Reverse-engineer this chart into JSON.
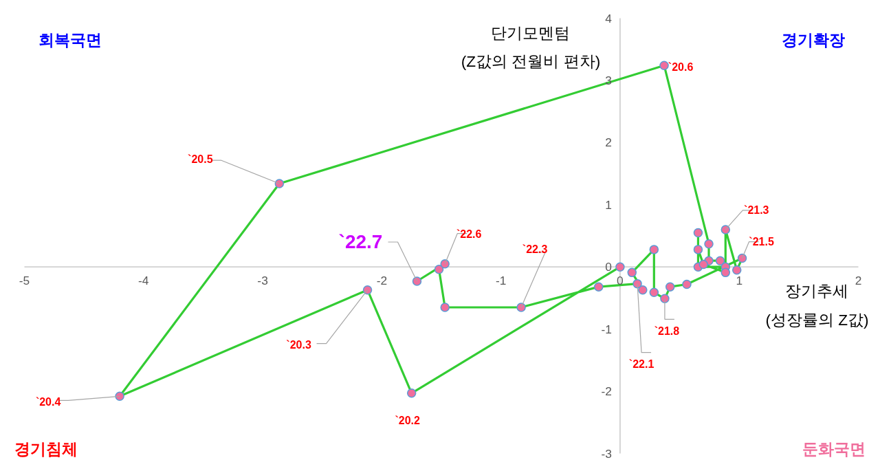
{
  "chart_data": {
    "type": "line",
    "xlabel": "장기추세\n(성장률의 Z값)",
    "ylabel": "단기모멘텀\n(Z값의 전월비 편차)",
    "xlim": [
      -5,
      2
    ],
    "ylim": [
      -3,
      4
    ],
    "xticks": [
      -5,
      -4,
      -3,
      -2,
      -1,
      0,
      1,
      2
    ],
    "yticks": [
      -3,
      -2,
      -1,
      0,
      1,
      2,
      3,
      4
    ],
    "grid": false,
    "marker": "circle",
    "line_style": "solid",
    "x": [
      0,
      -1.75,
      -2.12,
      -4.2,
      -2.86,
      0.37,
      0.745,
      0.745,
      0.84,
      0.885,
      0.655,
      0.655,
      0.655,
      0.7,
      0.885,
      0.885,
      0.98,
      1.025,
      0.56,
      0.42,
      0.375,
      0.285,
      0.285,
      0.1,
      0.19,
      0.145,
      -0.18,
      -0.83,
      -1.47,
      -1.52,
      -1.47,
      -1.705
    ],
    "series": [
      {
        "color": "#33cc33",
        "values": [
          0,
          -2.03,
          -0.37,
          -2.08,
          1.34,
          3.24,
          0.37,
          0.1,
          0.1,
          0.0,
          0.0,
          0.55,
          0.28,
          0.04,
          -0.09,
          0.6,
          -0.05,
          0.14,
          -0.28,
          -0.32,
          -0.51,
          -0.41,
          0.28,
          -0.09,
          -0.37,
          -0.27,
          -0.32,
          -0.65,
          -0.65,
          -0.04,
          0.05,
          -0.23
        ]
      }
    ],
    "annotations": [
      "회복국면",
      "경기확장",
      "경기침체",
      "둔화국면",
      {
        "text": "`20.2",
        "x": -1.75,
        "y": -2.03
      },
      {
        "text": "`20.3",
        "x": -2.12,
        "y": -0.37
      },
      {
        "text": "`20.4",
        "x": -4.2,
        "y": -2.08
      },
      {
        "text": "`20.5",
        "x": -2.86,
        "y": 1.34
      },
      {
        "text": "`20.6",
        "x": 0.37,
        "y": 3.24
      },
      {
        "text": "`21.3",
        "x": 0.885,
        "y": 0.6
      },
      {
        "text": "`21.5",
        "x": 1.025,
        "y": 0.14
      },
      {
        "text": "`21.8",
        "x": 0.375,
        "y": -0.51
      },
      {
        "text": "`22.1",
        "x": 0.145,
        "y": -0.27
      },
      {
        "text": "`22.3",
        "x": -0.83,
        "y": -0.65
      },
      {
        "text": "`22.6",
        "x": -1.47,
        "y": 0.05
      },
      {
        "text": "`22.7",
        "x": -1.705,
        "y": -0.23
      }
    ]
  }
}
